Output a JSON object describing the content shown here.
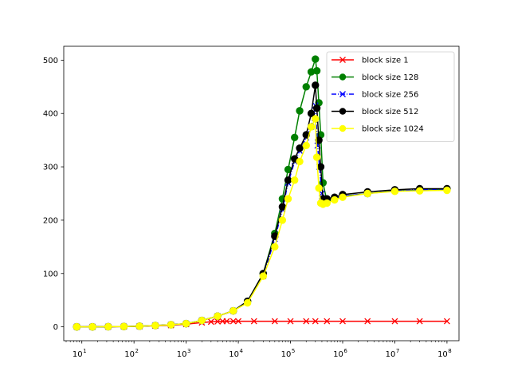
{
  "chart_data": {
    "type": "line",
    "title": "",
    "xlabel": "",
    "ylabel": "",
    "xscale": "log",
    "xlim": [
      4.5,
      170000000
    ],
    "ylim": [
      -26,
      526
    ],
    "grid": false,
    "legend_position": "top-right",
    "x_ticks": [
      {
        "value": 10,
        "base": "10",
        "exp": "1"
      },
      {
        "value": 100,
        "base": "10",
        "exp": "2"
      },
      {
        "value": 1000,
        "base": "10",
        "exp": "3"
      },
      {
        "value": 10000,
        "base": "10",
        "exp": "4"
      },
      {
        "value": 100000,
        "base": "10",
        "exp": "5"
      },
      {
        "value": 1000000,
        "base": "10",
        "exp": "6"
      },
      {
        "value": 10000000,
        "base": "10",
        "exp": "7"
      },
      {
        "value": 100000000,
        "base": "10",
        "exp": "8"
      }
    ],
    "y_ticks": [
      0,
      100,
      200,
      300,
      400,
      500
    ],
    "series": [
      {
        "name": "block size 1",
        "color": "#ff0000",
        "marker": "x",
        "linestyle": "solid",
        "x": [
          8,
          16,
          32,
          64,
          128,
          256,
          512,
          1000,
          2000,
          3000,
          4000,
          5000,
          6000,
          8000,
          10000,
          20000,
          50000,
          100000,
          200000,
          300000,
          500000,
          1000000,
          3000000,
          10000000,
          30000000,
          100000000
        ],
        "y": [
          0,
          0,
          0.2,
          0.5,
          1,
          2,
          3,
          5,
          8,
          9.5,
          10,
          10.5,
          10.5,
          10.5,
          10.5,
          10.5,
          10.5,
          10.5,
          10.5,
          10.5,
          10.5,
          10.5,
          10.5,
          10.5,
          10.5,
          10.5
        ]
      },
      {
        "name": "block size 128",
        "color": "#008000",
        "marker": "o",
        "linestyle": "solid",
        "x": [
          8,
          16,
          32,
          64,
          128,
          256,
          512,
          1000,
          2000,
          4000,
          8000,
          15000,
          30000,
          50000,
          70000,
          90000,
          120000,
          150000,
          200000,
          250000,
          300000,
          320000,
          350000,
          380000,
          420000,
          500000,
          700000,
          1000000,
          3000000,
          10000000,
          30000000,
          100000000
        ],
        "y": [
          0,
          0,
          0.3,
          0.6,
          1.2,
          2.5,
          4,
          6,
          12,
          20,
          30,
          48,
          100,
          175,
          240,
          295,
          355,
          405,
          450,
          478,
          502,
          480,
          420,
          360,
          270,
          235,
          242,
          245,
          250,
          255,
          256,
          258
        ]
      },
      {
        "name": "block size 256",
        "color": "#0000ff",
        "marker": "x",
        "linestyle": "dashdot",
        "x": [
          8,
          16,
          32,
          64,
          128,
          256,
          512,
          1000,
          2000,
          4000,
          8000,
          15000,
          30000,
          50000,
          70000,
          90000,
          120000,
          150000,
          200000,
          250000,
          300000,
          330000,
          360000,
          400000,
          450000,
          600000,
          1000000,
          3000000,
          10000000,
          30000000,
          100000000
        ],
        "y": [
          0,
          0,
          0.3,
          0.6,
          1.2,
          2.5,
          4,
          6,
          12,
          20,
          30,
          47,
          95,
          165,
          220,
          270,
          310,
          330,
          355,
          375,
          415,
          340,
          300,
          250,
          238,
          240,
          245,
          250,
          255,
          257,
          258
        ]
      },
      {
        "name": "block size 512",
        "color": "#000000",
        "marker": "o",
        "linestyle": "solid",
        "x": [
          8,
          16,
          32,
          64,
          128,
          256,
          512,
          1000,
          2000,
          4000,
          8000,
          15000,
          30000,
          50000,
          70000,
          90000,
          120000,
          150000,
          200000,
          250000,
          300000,
          320000,
          350000,
          380000,
          420000,
          500000,
          700000,
          1000000,
          3000000,
          10000000,
          30000000,
          100000000
        ],
        "y": [
          0,
          0,
          0.3,
          0.6,
          1.2,
          2.5,
          4,
          6,
          12,
          20,
          30,
          48,
          100,
          170,
          225,
          275,
          315,
          335,
          360,
          400,
          453,
          410,
          350,
          300,
          240,
          240,
          243,
          248,
          253,
          257,
          259,
          259
        ]
      },
      {
        "name": "block size 1024",
        "color": "#ffff00",
        "marker": "o",
        "linestyle": "solid",
        "x": [
          8,
          16,
          32,
          64,
          128,
          256,
          512,
          1000,
          2000,
          4000,
          8000,
          15000,
          30000,
          50000,
          70000,
          90000,
          120000,
          150000,
          200000,
          250000,
          300000,
          320000,
          350000,
          380000,
          420000,
          500000,
          700000,
          1000000,
          3000000,
          10000000,
          30000000,
          100000000
        ],
        "y": [
          0,
          0,
          0.3,
          0.6,
          1.2,
          2.5,
          4,
          6,
          12,
          20,
          30,
          45,
          95,
          150,
          200,
          240,
          275,
          310,
          340,
          375,
          390,
          318,
          260,
          232,
          230,
          232,
          238,
          243,
          250,
          254,
          255,
          256
        ]
      }
    ]
  }
}
